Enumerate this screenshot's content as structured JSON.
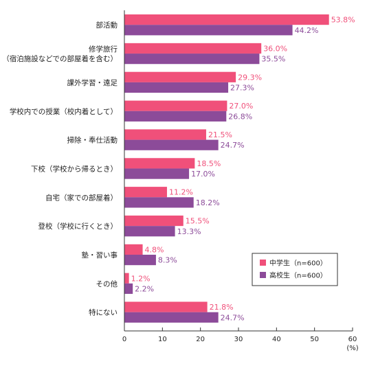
{
  "chart_data": {
    "type": "bar",
    "orientation": "horizontal",
    "categories": [
      [
        "部活動"
      ],
      [
        "修学旅行",
        "（宿泊施設などでの部屋着を含む）"
      ],
      [
        "課外学習・遠足"
      ],
      [
        "学校内での授業（校内着として）"
      ],
      [
        "掃除・奉仕活動"
      ],
      [
        "下校（学校から帰るとき）"
      ],
      [
        "自宅（家での部屋着）"
      ],
      [
        "登校（学校に行くとき）"
      ],
      [
        "塾・習い事"
      ],
      [
        "その他"
      ],
      [
        "特にない"
      ]
    ],
    "series": [
      {
        "name": "中学生（n=600）",
        "color": "#f0507a",
        "values": [
          53.8,
          36.0,
          29.3,
          27.0,
          21.5,
          18.5,
          11.2,
          15.5,
          4.8,
          1.2,
          21.8
        ]
      },
      {
        "name": "高校生（n=600）",
        "color": "#8c4b99",
        "values": [
          44.2,
          35.5,
          27.3,
          26.8,
          24.7,
          17.0,
          18.2,
          13.3,
          8.3,
          2.2,
          24.7
        ]
      }
    ],
    "xlim": [
      0,
      60
    ],
    "xticks": [
      0,
      10,
      20,
      30,
      40,
      50,
      60
    ],
    "xlabel": "(%)",
    "legend_position": "lower-right",
    "grid": false
  }
}
